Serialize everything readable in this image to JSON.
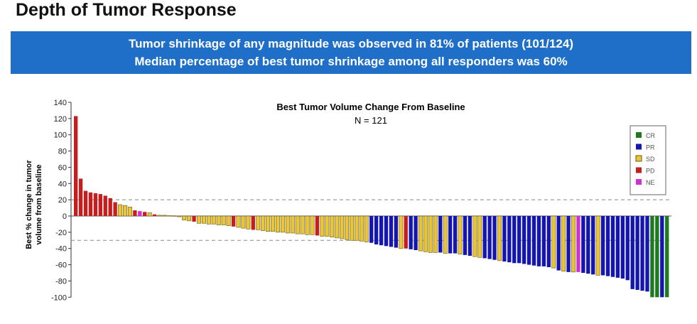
{
  "page_title": "Depth of Tumor Response",
  "banner": {
    "line1": "Tumor shrinkage of any magnitude was observed in 81% of patients (101/124)",
    "line2": "Median percentage of best tumor shrinkage among all responders was 60%"
  },
  "chart_data": {
    "type": "bar",
    "title": "Best Tumor Volume Change From Baseline",
    "subtitle": "N = 121",
    "ylabel_line1": "Best % change in tumor",
    "ylabel_line2": "volume from baseline",
    "ylim": [
      -100,
      140
    ],
    "yticks": [
      140,
      120,
      100,
      80,
      60,
      40,
      20,
      0,
      -20,
      -40,
      -60,
      -80,
      -100
    ],
    "reference_lines": [
      20,
      -30
    ],
    "legend": [
      {
        "code": "CR",
        "color": "#1e7a1e"
      },
      {
        "code": "PR",
        "color": "#1515b0"
      },
      {
        "code": "SD",
        "color": "#e8c53a"
      },
      {
        "code": "PD",
        "color": "#c41e1e"
      },
      {
        "code": "NE",
        "color": "#d030d0"
      }
    ],
    "legend_position": "top-right",
    "values": [
      123,
      46,
      31,
      29,
      28,
      27,
      25,
      22,
      17,
      14,
      13,
      11,
      7,
      6,
      5,
      4,
      2,
      1,
      1,
      0.5,
      0.3,
      -1,
      -5,
      -6,
      -7,
      -9,
      -9,
      -10,
      -10,
      -11,
      -11,
      -12,
      -13,
      -14,
      -15,
      -16,
      -17,
      -17,
      -18,
      -19,
      -19,
      -20,
      -20,
      -21,
      -21,
      -22,
      -22,
      -23,
      -23,
      -24,
      -25,
      -25,
      -26,
      -27,
      -28,
      -29,
      -30,
      -30,
      -31,
      -32,
      -33,
      -35,
      -36,
      -37,
      -38,
      -39,
      -40,
      -40,
      -41,
      -42,
      -43,
      -44,
      -45,
      -45,
      -45,
      -46,
      -46,
      -46,
      -47,
      -48,
      -49,
      -50,
      -51,
      -52,
      -53,
      -54,
      -55,
      -56,
      -57,
      -58,
      -58,
      -59,
      -60,
      -61,
      -62,
      -62,
      -63,
      -64,
      -67,
      -68,
      -69,
      -69,
      -69,
      -70,
      -71,
      -72,
      -73,
      -73,
      -74,
      -75,
      -76,
      -77,
      -79,
      -90,
      -91,
      -92,
      -93,
      -100,
      -100,
      -100,
      -100
    ],
    "status": [
      "PD",
      "PD",
      "PD",
      "PD",
      "PD",
      "PD",
      "PD",
      "PD",
      "PD",
      "SD",
      "SD",
      "SD",
      "PD",
      "NE",
      "PD",
      "SD",
      "PD",
      "SD",
      "SD",
      "SD",
      "SD",
      "SD",
      "SD",
      "SD",
      "PD",
      "SD",
      "SD",
      "SD",
      "SD",
      "SD",
      "SD",
      "SD",
      "PD",
      "SD",
      "SD",
      "SD",
      "PD",
      "SD",
      "SD",
      "SD",
      "SD",
      "SD",
      "SD",
      "SD",
      "SD",
      "SD",
      "SD",
      "SD",
      "SD",
      "PD",
      "SD",
      "SD",
      "SD",
      "SD",
      "SD",
      "SD",
      "SD",
      "SD",
      "SD",
      "SD",
      "PR",
      "PR",
      "PR",
      "PR",
      "PR",
      "PR",
      "SD",
      "PD",
      "PR",
      "PR",
      "SD",
      "SD",
      "SD",
      "SD",
      "PR",
      "SD",
      "PR",
      "PR",
      "SD",
      "PR",
      "PR",
      "SD",
      "SD",
      "PR",
      "PR",
      "PR",
      "SD",
      "PR",
      "PR",
      "PR",
      "PR",
      "PR",
      "PR",
      "PR",
      "PR",
      "PR",
      "PR",
      "SD",
      "PR",
      "SD",
      "PR",
      "SD",
      "NE",
      "PR",
      "PR",
      "PR",
      "SD",
      "PR",
      "PR",
      "PR",
      "PR",
      "PR",
      "PR",
      "PR",
      "PR",
      "PR",
      "PR",
      "CR",
      "CR",
      "PR",
      "CR"
    ]
  }
}
